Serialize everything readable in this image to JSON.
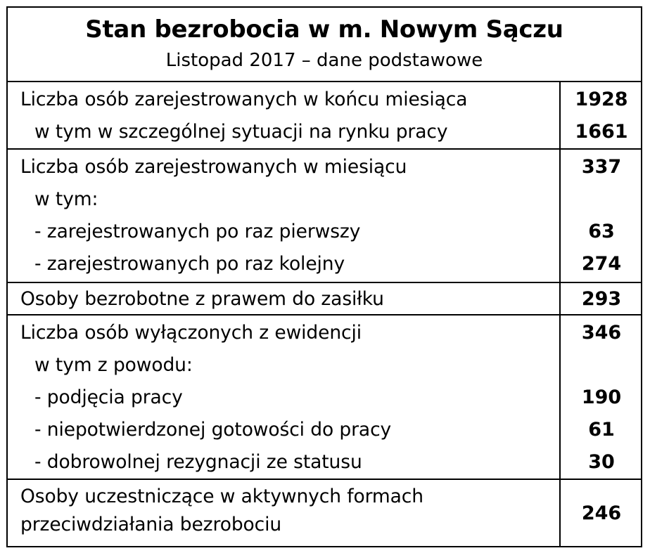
{
  "title": "Stan bezrobocia w m. Nowym Sączu",
  "subtitle": "Listopad 2017 – dane podstawowe",
  "sections": [
    {
      "rows": [
        {
          "label": "Liczba osób zarejestrowanych w końcu miesiąca",
          "value": "1928"
        },
        {
          "label": "w tym w szczególnej sytuacji na rynku pracy",
          "value": "1661"
        }
      ]
    },
    {
      "rows": [
        {
          "label": "Liczba osób zarejestrowanych w miesiącu",
          "value": "337"
        },
        {
          "label": "w tym:",
          "value": ""
        },
        {
          "label": "- zarejestrowanych po raz pierwszy",
          "value": "63"
        },
        {
          "label": "- zarejestrowanych po raz kolejny",
          "value": "274"
        }
      ]
    },
    {
      "rows": [
        {
          "label": "Osoby bezrobotne z prawem do zasiłku",
          "value": "293"
        }
      ]
    },
    {
      "rows": [
        {
          "label": "Liczba osób wyłączonych z ewidencji",
          "value": "346"
        },
        {
          "label": "w tym z powodu:",
          "value": ""
        },
        {
          "label": "- podjęcia pracy",
          "value": "190"
        },
        {
          "label": "- niepotwierdzonej gotowości do pracy",
          "value": "61"
        },
        {
          "label": "- dobrowolnej rezygnacji ze statusu",
          "value": "30"
        }
      ]
    },
    {
      "rows": [
        {
          "label": "Osoby uczestniczące w aktywnych formach przeciwdziałania bezrobociu",
          "value": "246"
        }
      ]
    }
  ]
}
